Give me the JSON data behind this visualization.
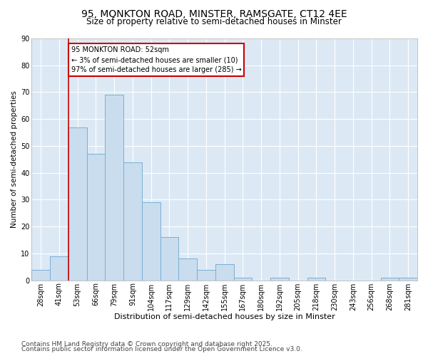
{
  "title1": "95, MONKTON ROAD, MINSTER, RAMSGATE, CT12 4EE",
  "title2": "Size of property relative to semi-detached houses in Minster",
  "xlabel": "Distribution of semi-detached houses by size in Minster",
  "ylabel": "Number of semi-detached properties",
  "categories": [
    "28sqm",
    "41sqm",
    "53sqm",
    "66sqm",
    "79sqm",
    "91sqm",
    "104sqm",
    "117sqm",
    "129sqm",
    "142sqm",
    "155sqm",
    "167sqm",
    "180sqm",
    "192sqm",
    "205sqm",
    "218sqm",
    "230sqm",
    "243sqm",
    "256sqm",
    "268sqm",
    "281sqm"
  ],
  "values": [
    4,
    9,
    57,
    47,
    69,
    44,
    29,
    16,
    8,
    4,
    6,
    1,
    0,
    1,
    0,
    1,
    0,
    0,
    0,
    1,
    1
  ],
  "bar_color": "#c9ddef",
  "bar_edge_color": "#7aafd4",
  "annotation_title": "95 MONKTON ROAD: 52sqm",
  "annotation_line1": "← 3% of semi-detached houses are smaller (10)",
  "annotation_line2": "97% of semi-detached houses are larger (285) →",
  "annotation_box_color": "#ffffff",
  "annotation_border_color": "#cc0000",
  "vline_color": "#cc0000",
  "vline_x_index": 1.5,
  "ylim": [
    0,
    90
  ],
  "yticks": [
    0,
    10,
    20,
    30,
    40,
    50,
    60,
    70,
    80,
    90
  ],
  "bg_color": "#ffffff",
  "plot_bg_color": "#dce9f5",
  "grid_color": "#ffffff",
  "footnote1": "Contains HM Land Registry data © Crown copyright and database right 2025.",
  "footnote2": "Contains public sector information licensed under the Open Government Licence v3.0.",
  "title1_fontsize": 10,
  "title2_fontsize": 8.5,
  "xlabel_fontsize": 8,
  "ylabel_fontsize": 7.5,
  "tick_fontsize": 7,
  "annot_fontsize": 7,
  "footnote_fontsize": 6.5
}
